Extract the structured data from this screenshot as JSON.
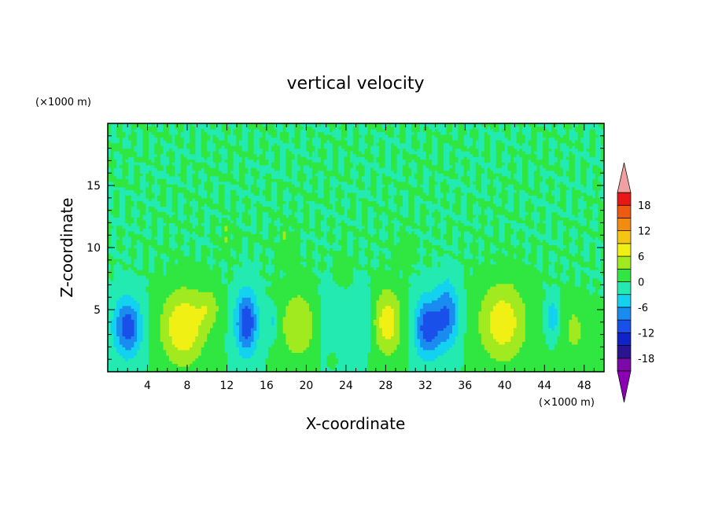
{
  "chart_data": {
    "type": "heatmap",
    "title": "vertical velocity",
    "xlabel": "X-coordinate",
    "ylabel": "Z-coordinate",
    "x_unit": "(×1000 m)",
    "y_unit": "(×1000 m)",
    "xlim": [
      0,
      50
    ],
    "ylim": [
      0,
      20
    ],
    "x_ticks": [
      4,
      8,
      12,
      16,
      20,
      24,
      28,
      32,
      36,
      40,
      44,
      48
    ],
    "x_tick_labels": [
      "4",
      "8",
      "12",
      "16",
      "20",
      "24",
      "28",
      "32",
      "36",
      "40",
      "44",
      "48"
    ],
    "y_ticks": [
      5,
      10,
      15
    ],
    "y_tick_labels": [
      "5",
      "10",
      "15"
    ],
    "background_value": 0,
    "features": [
      {
        "x": 2.0,
        "z": 3.6,
        "rx": 1.4,
        "rz": 2.3,
        "amp": -11
      },
      {
        "x": 7.6,
        "z": 3.6,
        "rx": 2.2,
        "rz": 3.0,
        "amp": 9
      },
      {
        "x": 10.2,
        "z": 5.2,
        "rx": 1.2,
        "rz": 1.6,
        "amp": 4
      },
      {
        "x": 14.0,
        "z": 4.0,
        "rx": 1.1,
        "rz": 2.5,
        "amp": -12
      },
      {
        "x": 16.6,
        "z": 4.0,
        "rx": 0.6,
        "rz": 1.2,
        "amp": -4
      },
      {
        "x": 19.2,
        "z": 3.8,
        "rx": 1.8,
        "rz": 2.8,
        "amp": 6
      },
      {
        "x": 22.8,
        "z": 4.0,
        "rx": 1.5,
        "rz": 3.0,
        "amp": -3
      },
      {
        "x": 23.6,
        "z": 8.2,
        "rx": 0.9,
        "rz": 1.3,
        "amp": 3
      },
      {
        "x": 22.6,
        "z": 1.0,
        "rx": 0.5,
        "rz": 0.6,
        "amp": 3
      },
      {
        "x": 25.5,
        "z": 4.0,
        "rx": 1.0,
        "rz": 2.5,
        "amp": -3
      },
      {
        "x": 28.2,
        "z": 4.0,
        "rx": 1.4,
        "rz": 2.7,
        "amp": 8
      },
      {
        "x": 32.2,
        "z": 3.6,
        "rx": 1.3,
        "rz": 2.4,
        "amp": -11
      },
      {
        "x": 34.2,
        "z": 4.6,
        "rx": 1.2,
        "rz": 2.6,
        "amp": -9
      },
      {
        "x": 39.8,
        "z": 4.0,
        "rx": 2.4,
        "rz": 3.2,
        "amp": 8
      },
      {
        "x": 44.8,
        "z": 4.4,
        "rx": 0.6,
        "rz": 1.3,
        "amp": -6
      },
      {
        "x": 47.0,
        "z": 3.4,
        "rx": 1.1,
        "rz": 2.2,
        "amp": 4
      },
      {
        "x": 18.0,
        "z": 10.5,
        "rx": 1.0,
        "rz": 1.5,
        "amp": 2
      },
      {
        "x": 30.0,
        "z": 10.0,
        "rx": 1.0,
        "rz": 1.2,
        "amp": 2
      },
      {
        "x": 12.0,
        "z": 11.0,
        "rx": 1.0,
        "rz": 1.2,
        "amp": 2
      }
    ],
    "colorbar": {
      "levels": [
        -21,
        -18,
        -15,
        -12,
        -9,
        -6,
        -3,
        0,
        3,
        6,
        9,
        12,
        15,
        18,
        21
      ],
      "tick_labels": [
        "18",
        "12",
        "6",
        "0",
        "-6",
        "-12",
        "-18"
      ],
      "tick_values": [
        18,
        12,
        6,
        0,
        -6,
        -12,
        -18
      ],
      "colors": [
        "#7c0aa8",
        "#2a1490",
        "#0f23c8",
        "#1a50ea",
        "#1a8cf0",
        "#12d2f0",
        "#22eab0",
        "#30e640",
        "#a2ea20",
        "#f0f014",
        "#f4c612",
        "#f28c10",
        "#ee5a10",
        "#e81818",
        "#ef9d9d"
      ],
      "over_color": "#efa0a0",
      "under_color": "#8c00b4"
    }
  }
}
